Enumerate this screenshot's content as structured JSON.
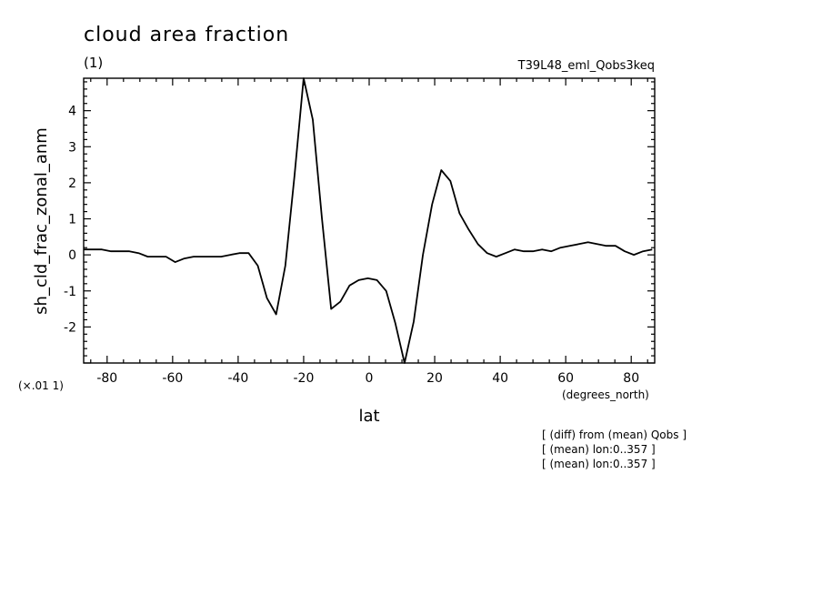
{
  "header": {
    "title": "cloud area fraction",
    "units": "(1)",
    "run_name": "T39L48_eml_Qobs3keq"
  },
  "footer": {
    "scale_note": "(×.01 1)",
    "x_units": "(degrees_north)",
    "notes": [
      "[ (diff) from (mean) Qobs ]",
      "[ (mean) lon:0..357 ]",
      "[ (mean) lon:0..357 ]"
    ]
  },
  "chart_data": {
    "type": "line",
    "title": "cloud area fraction",
    "xlabel": "lat",
    "ylabel": "sh_cld_frac_zonal_anm",
    "xlim": [
      -87.16,
      87.16
    ],
    "ylim": [
      -3,
      4.9
    ],
    "grid": false,
    "x_ticks": [
      -80,
      -60,
      -40,
      -20,
      0,
      20,
      40,
      60,
      80
    ],
    "x_tick_labels": [
      "-80",
      "-60",
      "-40",
      "-20",
      "0",
      "20",
      "40",
      "60",
      "80"
    ],
    "y_ticks": [
      -2,
      -1,
      0,
      1,
      2,
      3,
      4
    ],
    "y_tick_labels": [
      "-2",
      "-1",
      "0",
      "1",
      "2",
      "3",
      "4"
    ],
    "series": [
      {
        "x": [
          -87.2,
          -84.4,
          -81.6,
          -78.8,
          -76.0,
          -73.2,
          -70.4,
          -67.6,
          -64.8,
          -62.0,
          -59.2,
          -56.4,
          -53.6,
          -50.8,
          -48.0,
          -45.2,
          -42.4,
          -39.6,
          -36.8,
          -34.0,
          -31.2,
          -28.4,
          -25.6,
          -22.8,
          -20.0,
          -17.2,
          -14.4,
          -11.6,
          -8.8,
          -6.0,
          -3.2,
          -0.4,
          2.4,
          5.2,
          8.0,
          10.8,
          13.6,
          16.4,
          19.2,
          22.0,
          24.8,
          27.6,
          30.4,
          33.2,
          36.0,
          38.8,
          41.6,
          44.4,
          47.2,
          50.0,
          52.8,
          55.6,
          58.4,
          61.2,
          64.0,
          66.8,
          69.6,
          72.4,
          75.2,
          78.0,
          80.8,
          83.6,
          86.4
        ],
        "values": [
          0.15,
          0.15,
          0.15,
          0.1,
          0.1,
          0.1,
          0.05,
          -0.05,
          -0.05,
          -0.05,
          -0.2,
          -0.1,
          -0.05,
          -0.05,
          -0.05,
          -0.05,
          0.0,
          0.05,
          0.05,
          -0.3,
          -1.2,
          -1.65,
          -0.3,
          2.2,
          4.9,
          3.75,
          1.0,
          -1.5,
          -1.3,
          -0.85,
          -0.7,
          -0.65,
          -0.7,
          -1.0,
          -1.9,
          -3.0,
          -1.85,
          0.0,
          1.4,
          2.35,
          2.05,
          1.15,
          0.7,
          0.3,
          0.05,
          -0.05,
          0.05,
          0.15,
          0.1,
          0.1,
          0.15,
          0.1,
          0.2,
          0.25,
          0.3,
          0.35,
          0.3,
          0.25,
          0.25,
          0.1,
          0.0,
          0.1,
          0.15
        ]
      }
    ]
  }
}
